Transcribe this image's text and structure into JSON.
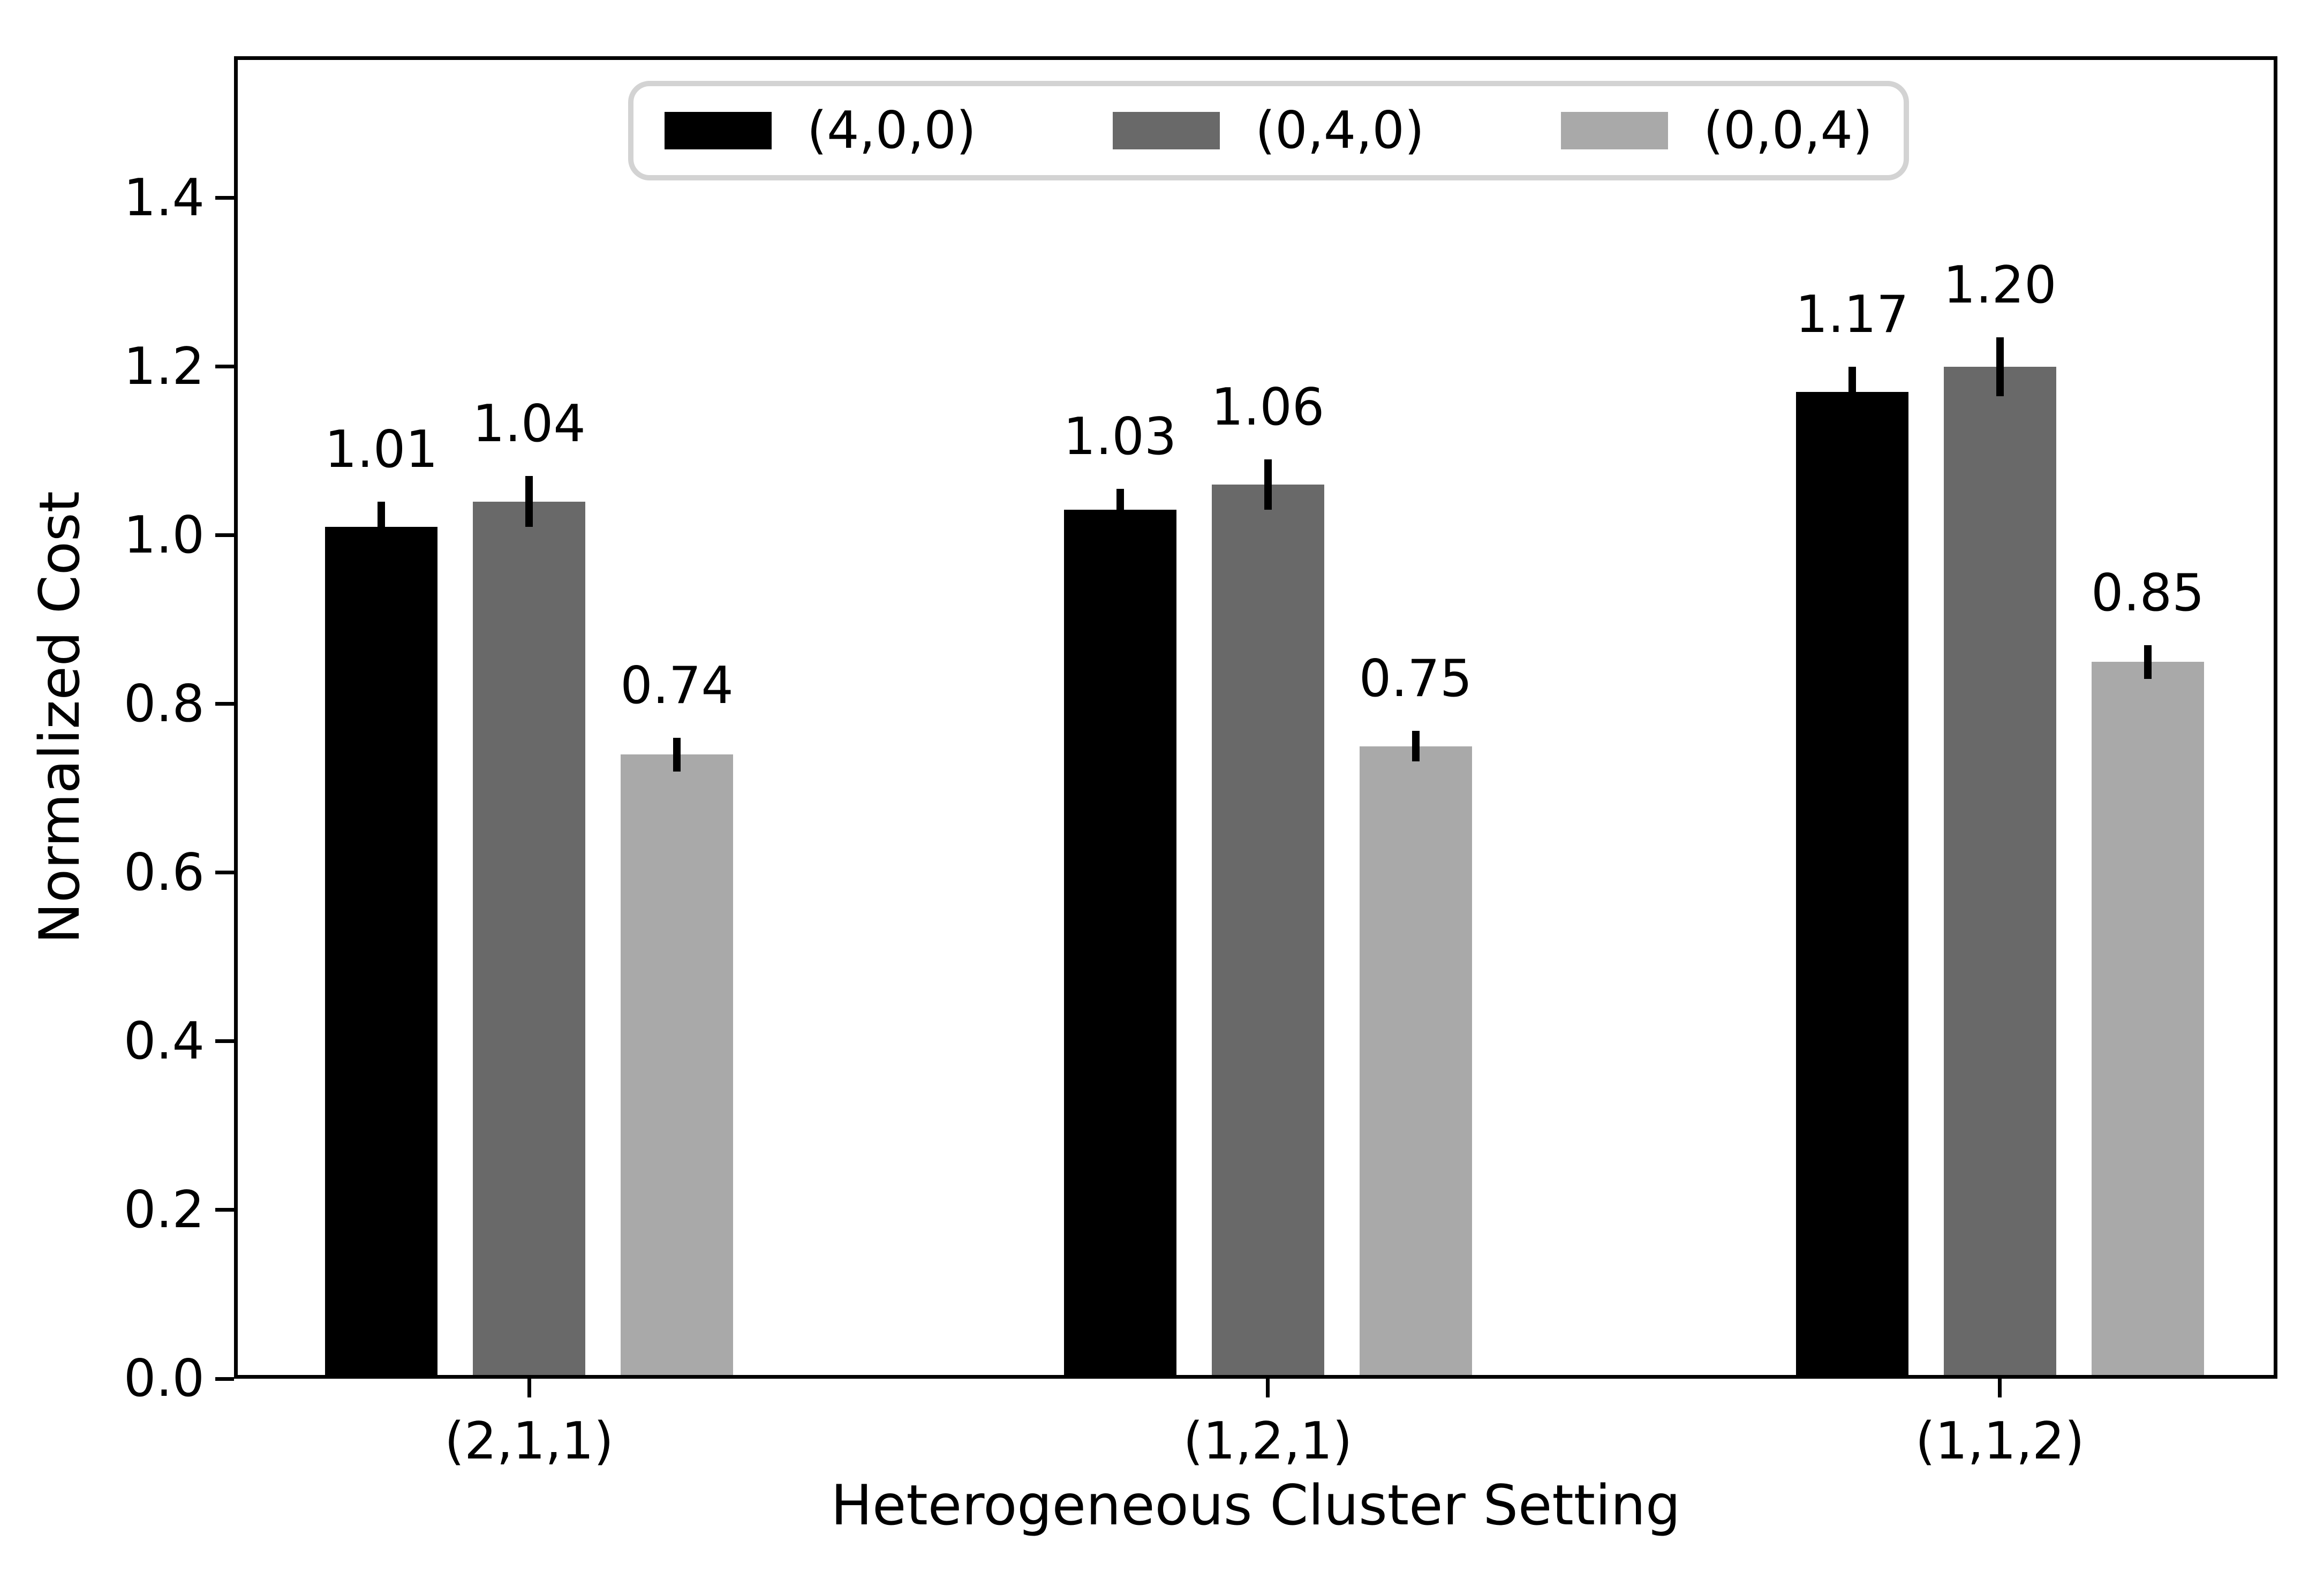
{
  "chart_data": {
    "type": "bar",
    "title": "",
    "xlabel": "Heterogeneous Cluster Setting",
    "ylabel": "Normalized Cost",
    "categories": [
      "(2,1,1)",
      "(1,2,1)",
      "(1,1,2)"
    ],
    "series": [
      {
        "name": "(4,0,0)",
        "color": "#000000",
        "values": [
          1.01,
          1.03,
          1.17
        ],
        "errors": [
          0.03,
          0.025,
          0.03
        ]
      },
      {
        "name": "(0,4,0)",
        "color": "#696969",
        "values": [
          1.04,
          1.06,
          1.2
        ],
        "errors": [
          0.03,
          0.03,
          0.035
        ]
      },
      {
        "name": "(0,0,4)",
        "color": "#a9a9a9",
        "values": [
          0.74,
          0.75,
          0.85
        ],
        "errors": [
          0.02,
          0.018,
          0.02
        ]
      }
    ],
    "bar_value_labels": [
      "1.01",
      "1.04",
      "0.74",
      "1.03",
      "1.06",
      "0.75",
      "1.17",
      "1.20",
      "0.85"
    ],
    "ylim": [
      0,
      1.568
    ],
    "yticks": [
      0.0,
      0.2,
      0.4,
      0.6,
      0.8,
      1.0,
      1.2,
      1.4
    ],
    "grid": false,
    "error_bars": true,
    "legend": {
      "position": "upper center",
      "border_color": "#d3d3d3",
      "background": "#ffffff"
    },
    "axis_color": "#000000",
    "background_color": "#ffffff"
  }
}
